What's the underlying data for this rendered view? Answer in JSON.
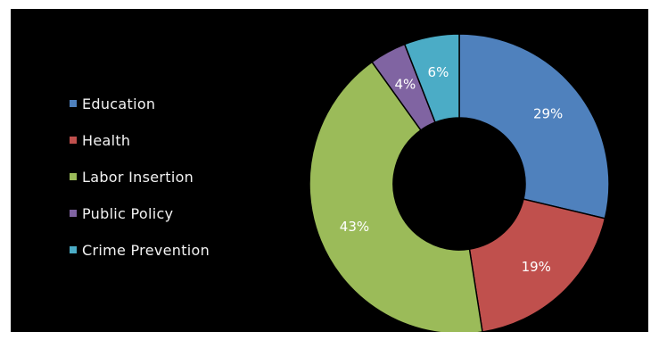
{
  "chart_data": {
    "type": "pie",
    "variant": "donut",
    "legend_position": "left",
    "categories": [
      "Education",
      "Health",
      "Labor Insertion",
      "Public Policy",
      "Crime Prevention"
    ],
    "values": [
      29,
      19,
      43,
      4,
      6
    ],
    "labels": [
      "29%",
      "19%",
      "43%",
      "4%",
      "6%"
    ],
    "colors": [
      "#4f81bd",
      "#c0504d",
      "#9bbb59",
      "#8064a2",
      "#4bacc6"
    ]
  }
}
